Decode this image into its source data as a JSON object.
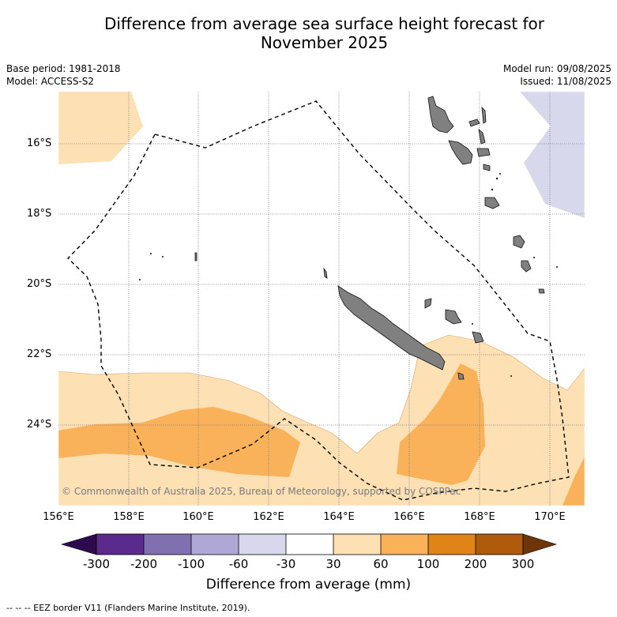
{
  "title": {
    "line1": "Difference from average sea surface height forecast for",
    "line2": "November 2025"
  },
  "meta": {
    "base_period": "Base period: 1981-2018",
    "model": "Model: ACCESS-S2",
    "model_run": "Model run: 09/08/2025",
    "issued": "Issued: 11/08/2025"
  },
  "map": {
    "lat_ticks": [
      "16°S",
      "18°S",
      "20°S",
      "22°S",
      "24°S"
    ],
    "lon_ticks": [
      "156°E",
      "158°E",
      "160°E",
      "162°E",
      "164°E",
      "166°E",
      "168°E",
      "170°E"
    ],
    "copyright": "© Commonwealth of Australia 2025, Bureau of Meteorology, supported by COSPPac"
  },
  "colorbar": {
    "labels": [
      "-300",
      "-200",
      "-100",
      "-60",
      "-30",
      "30",
      "60",
      "100",
      "200",
      "300"
    ],
    "colors": [
      "#2d0a4e",
      "#5a2a8c",
      "#8070b0",
      "#b0a8d4",
      "#d8d8ec",
      "#ffffff",
      "#fde0b4",
      "#f9b15a",
      "#e08418",
      "#b05a0c",
      "#6e3508"
    ],
    "title": "Difference from average (mm)"
  },
  "footnote": "-- -- -- EEZ border V11 (Flanders Marine Institute, 2019)."
}
